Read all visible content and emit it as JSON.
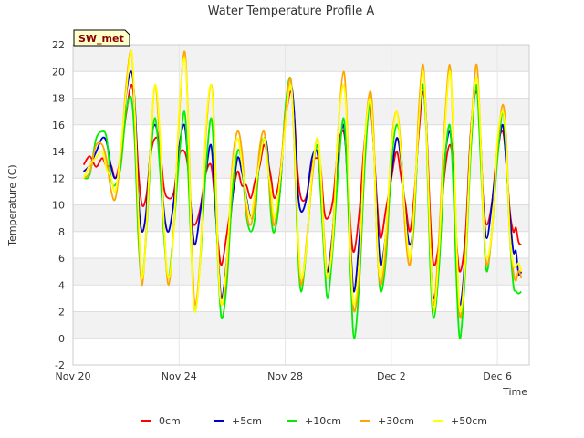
{
  "chart_data": {
    "type": "line",
    "title": "Water Temperature Profile A",
    "xlabel": "Time",
    "ylabel": "Temperature (C)",
    "station_tag": "SW_met",
    "xlim": [
      0,
      17.2
    ],
    "ylim": [
      -2,
      22
    ],
    "y_ticks": [
      -2,
      0,
      2,
      4,
      6,
      8,
      10,
      12,
      14,
      16,
      18,
      20,
      22
    ],
    "x_ticks": [
      {
        "value": 0,
        "label": "Nov 20"
      },
      {
        "value": 4,
        "label": "Nov 24"
      },
      {
        "value": 8,
        "label": "Nov 28"
      },
      {
        "value": 12,
        "label": "Dec 2"
      },
      {
        "value": 16,
        "label": "Dec 6"
      }
    ],
    "grid": true,
    "legend_position": "bottom",
    "days": [
      0.4,
      1.1,
      1.6,
      2.2,
      2.6,
      3.1,
      3.6,
      4.2,
      4.6,
      5.2,
      5.6,
      6.2,
      6.7,
      7.2,
      7.6,
      8.2,
      8.6,
      9.2,
      9.6,
      10.2,
      10.6,
      11.2,
      11.6,
      12.2,
      12.7,
      13.2,
      13.6,
      14.2,
      14.6,
      15.2,
      15.6,
      16.2,
      16.6,
      16.9
    ],
    "series": [
      {
        "name": "0cm",
        "color": "#ff0000",
        "values": [
          13.0,
          13.5,
          12.0,
          19.0,
          10.0,
          15.0,
          10.5,
          14.0,
          8.5,
          13.0,
          5.5,
          12.5,
          10.5,
          14.5,
          10.5,
          18.5,
          10.5,
          13.5,
          9.0,
          15.5,
          6.5,
          17.5,
          7.5,
          14.0,
          8.0,
          18.5,
          5.5,
          14.5,
          5.0,
          18.5,
          8.5,
          15.5,
          8.0,
          7.0
        ]
      },
      {
        "name": "+5cm",
        "color": "#0000cd",
        "values": [
          12.5,
          15.0,
          12.0,
          20.0,
          8.0,
          16.0,
          8.0,
          16.0,
          7.0,
          14.5,
          3.0,
          13.5,
          9.0,
          15.0,
          9.0,
          19.0,
          9.5,
          14.0,
          5.0,
          16.0,
          3.5,
          18.0,
          5.5,
          15.0,
          7.0,
          19.0,
          3.0,
          15.5,
          2.5,
          19.0,
          7.5,
          16.0,
          6.5,
          5.0
        ]
      },
      {
        "name": "+10cm",
        "color": "#00ee00",
        "values": [
          12.0,
          15.5,
          11.5,
          18.0,
          4.5,
          16.5,
          4.5,
          17.0,
          2.0,
          16.5,
          1.5,
          14.0,
          8.0,
          15.0,
          8.0,
          19.5,
          3.5,
          14.5,
          3.0,
          16.5,
          0.0,
          18.0,
          3.5,
          16.0,
          6.0,
          19.0,
          1.5,
          16.0,
          0.0,
          19.0,
          5.0,
          17.0,
          4.0,
          3.5
        ]
      },
      {
        "name": "+30cm",
        "color": "#ffa500",
        "values": [
          12.0,
          14.5,
          10.5,
          21.5,
          4.0,
          19.0,
          4.0,
          21.5,
          2.5,
          19.0,
          2.5,
          15.5,
          8.5,
          15.5,
          8.5,
          19.5,
          4.0,
          15.0,
          4.5,
          20.0,
          2.0,
          18.5,
          4.0,
          17.0,
          5.5,
          20.5,
          2.5,
          20.5,
          1.5,
          20.5,
          5.5,
          17.5,
          5.0,
          4.5
        ]
      },
      {
        "name": "+50cm",
        "color": "#ffff00",
        "values": [
          12.0,
          14.0,
          11.0,
          21.5,
          4.5,
          19.0,
          4.5,
          21.0,
          2.0,
          19.0,
          2.5,
          15.0,
          9.0,
          15.0,
          9.0,
          19.0,
          4.5,
          15.0,
          4.5,
          19.0,
          2.5,
          18.0,
          4.5,
          17.0,
          6.0,
          20.0,
          2.0,
          20.0,
          2.0,
          19.5,
          6.0,
          17.0,
          5.5,
          5.0
        ]
      }
    ]
  }
}
